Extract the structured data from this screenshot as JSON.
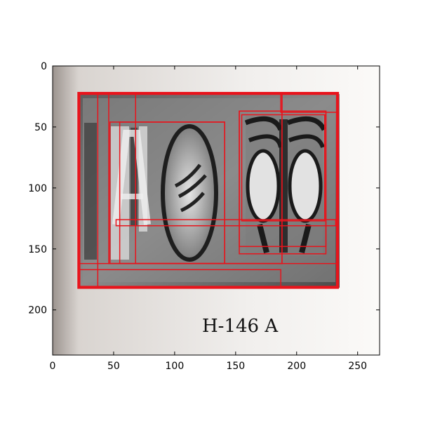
{
  "image": {
    "caption": "H-146 A",
    "description_icon": "seal-photo"
  },
  "axes": {
    "x_ticks": [
      "0",
      "50",
      "100",
      "150",
      "200",
      "250"
    ],
    "y_ticks": [
      "0",
      "50",
      "100",
      "150",
      "200"
    ],
    "xlim": [
      0,
      268
    ],
    "ylim": [
      0,
      237
    ]
  },
  "boxes": [
    {
      "x1": 21,
      "y1": 22,
      "x2": 234,
      "y2": 182
    },
    {
      "x1": 22,
      "y1": 23,
      "x2": 233,
      "y2": 181
    },
    {
      "x1": 37,
      "y1": 22,
      "x2": 233,
      "y2": 181
    },
    {
      "x1": 22,
      "y1": 162,
      "x2": 233,
      "y2": 181
    },
    {
      "x1": 22,
      "y1": 167,
      "x2": 187,
      "y2": 181
    },
    {
      "x1": 46,
      "y1": 23,
      "x2": 188,
      "y2": 162
    },
    {
      "x1": 47,
      "y1": 46,
      "x2": 141,
      "y2": 162
    },
    {
      "x1": 55,
      "y1": 46,
      "x2": 141,
      "y2": 162
    },
    {
      "x1": 68,
      "y1": 23,
      "x2": 188,
      "y2": 162
    },
    {
      "x1": 52,
      "y1": 126,
      "x2": 232,
      "y2": 131
    },
    {
      "x1": 153,
      "y1": 37,
      "x2": 224,
      "y2": 154
    },
    {
      "x1": 153,
      "y1": 37,
      "x2": 224,
      "y2": 148
    },
    {
      "x1": 155,
      "y1": 40,
      "x2": 223,
      "y2": 127
    },
    {
      "x1": 187,
      "y1": 23,
      "x2": 233,
      "y2": 38
    }
  ],
  "colors": {
    "box": "#e8141c",
    "frame": "#000000"
  }
}
